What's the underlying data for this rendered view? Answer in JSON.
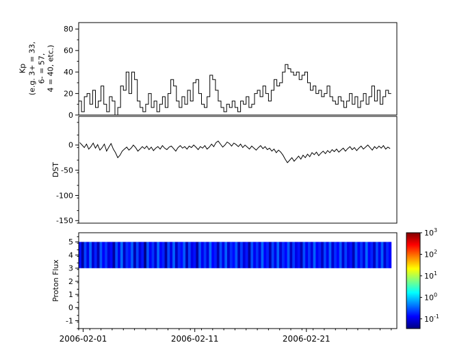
{
  "figure": {
    "background": "#ffffff",
    "frame_color": "#000000"
  },
  "x_axis": {
    "tick_labels": [
      "2006-02-01",
      "2006-02-11",
      "2006-02-21"
    ],
    "tick_days": [
      0.4,
      10.4,
      20.4
    ],
    "domain_days": [
      0,
      28.5
    ],
    "minor_tick_every_days": 1
  },
  "chart_data": [
    {
      "name": "kp",
      "type": "line",
      "line_style": "step",
      "color": "#000000",
      "ylabel": "Kp\n(e.g. 3+ = 33,\n6- = 57,\n4 = 40, etc.)",
      "ylim": [
        0,
        86
      ],
      "yticks": [
        0,
        20,
        40,
        60,
        80
      ],
      "ytick_minor": 10,
      "span_days": 28,
      "values": [
        13,
        3,
        17,
        20,
        10,
        23,
        7,
        13,
        27,
        10,
        3,
        17,
        13,
        0,
        7,
        27,
        23,
        40,
        20,
        40,
        33,
        13,
        7,
        3,
        10,
        20,
        7,
        13,
        3,
        10,
        17,
        7,
        20,
        33,
        27,
        13,
        7,
        17,
        10,
        23,
        13,
        30,
        33,
        20,
        10,
        7,
        17,
        37,
        33,
        23,
        13,
        7,
        3,
        10,
        7,
        13,
        7,
        3,
        13,
        10,
        17,
        7,
        10,
        20,
        23,
        17,
        27,
        20,
        13,
        23,
        33,
        27,
        30,
        40,
        47,
        43,
        40,
        37,
        40,
        33,
        37,
        40,
        30,
        23,
        27,
        20,
        23,
        17,
        20,
        27,
        17,
        13,
        10,
        17,
        13,
        7,
        13,
        20,
        10,
        17,
        7,
        13,
        20,
        10,
        17,
        27,
        13,
        23,
        10,
        17,
        23,
        20
      ]
    },
    {
      "name": "dst",
      "type": "line",
      "line_style": "linear",
      "color": "#000000",
      "ylabel": "DST",
      "ylim": [
        -155,
        57
      ],
      "yticks": [
        0,
        -50,
        -100,
        -150
      ],
      "ytick_minor": 25,
      "span_days": 28,
      "values": [
        5,
        0,
        -5,
        2,
        -8,
        -3,
        4,
        -6,
        1,
        -10,
        -5,
        2,
        -12,
        -4,
        3,
        -8,
        -15,
        -25,
        -20,
        -12,
        -8,
        -4,
        -10,
        -6,
        0,
        -5,
        -12,
        -8,
        -3,
        -7,
        -2,
        -9,
        -4,
        -11,
        -6,
        -3,
        -8,
        -1,
        -6,
        -9,
        -4,
        -2,
        -7,
        -12,
        -5,
        -1,
        -6,
        -3,
        -8,
        -2,
        -5,
        0,
        -4,
        -9,
        -3,
        -6,
        -1,
        -8,
        -4,
        2,
        -3,
        5,
        8,
        2,
        -4,
        0,
        6,
        3,
        -2,
        4,
        1,
        -3,
        2,
        -5,
        0,
        -4,
        -8,
        -2,
        -6,
        -10,
        -5,
        -1,
        -7,
        -3,
        -9,
        -6,
        -12,
        -8,
        -15,
        -10,
        -14,
        -20,
        -28,
        -35,
        -30,
        -25,
        -32,
        -27,
        -22,
        -28,
        -20,
        -25,
        -18,
        -23,
        -15,
        -19,
        -14,
        -21,
        -16,
        -12,
        -17,
        -11,
        -15,
        -9,
        -13,
        -8,
        -14,
        -10,
        -6,
        -12,
        -7,
        -3,
        -9,
        -5,
        -11,
        -6,
        -2,
        -8,
        -4,
        0,
        -5,
        -10,
        -3,
        -7,
        -2,
        -6,
        -1,
        -8,
        -4,
        -7
      ]
    },
    {
      "name": "proton-flux",
      "type": "heatmap",
      "ylabel": "Proton Flux",
      "ylim": [
        -1.6,
        5.7
      ],
      "yticks": [
        -1,
        0,
        1,
        2,
        3,
        4,
        5
      ],
      "ytick_minor": 0.5,
      "span_days": 28,
      "band_y_range": [
        3,
        5
      ],
      "values": [
        0.15,
        0.05,
        0.25,
        0.1,
        0.35,
        0.08,
        0.18,
        0.06,
        0.3,
        0.12,
        0.22,
        0.09,
        0.14,
        0.05,
        0.28,
        0.11,
        0.37,
        0.07,
        0.2,
        0.15,
        0.32,
        0.06,
        0.25,
        0.09,
        0.16,
        0.04,
        0.29,
        0.12,
        0.21,
        0.08,
        0.35,
        0.13,
        0.18,
        0.05,
        0.26,
        0.1,
        0.34,
        0.07,
        0.19,
        0.14,
        0.31,
        0.06,
        0.24,
        0.1,
        0.15,
        0.05,
        0.28,
        0.11,
        0.22,
        0.09,
        0.36,
        0.13,
        0.17,
        0.06,
        0.27,
        0.1,
        0.33,
        0.08,
        0.2,
        0.14,
        0.3,
        0.07,
        0.23,
        0.09,
        0.16,
        0.05,
        0.28,
        0.11,
        0.21,
        0.09,
        0.35,
        0.12,
        0.18,
        0.06,
        0.25,
        0.1,
        0.34,
        0.08,
        0.2,
        0.13,
        0.31,
        0.07,
        0.23,
        0.1,
        0.15,
        0.06,
        0.27,
        0.11,
        0.22,
        0.09,
        0.34,
        0.12,
        0.17,
        0.07,
        0.25,
        0.11,
        0.32,
        0.08,
        0.2,
        0.13,
        0.3,
        0.08,
        0.24,
        0.1,
        0.15,
        0.06,
        0.28,
        0.12,
        0.21,
        0.09,
        0.36,
        0.13,
        0.18,
        0.07,
        0.26,
        0.11,
        0.33,
        0.08,
        0.19,
        0.13
      ],
      "colorbar": {
        "colormap": "jet",
        "scale": "log10",
        "tick_exponents": [
          -1,
          0,
          1,
          2,
          3
        ],
        "tick_label_base": "10",
        "domain_log10": [
          -1.45,
          3
        ]
      }
    }
  ]
}
